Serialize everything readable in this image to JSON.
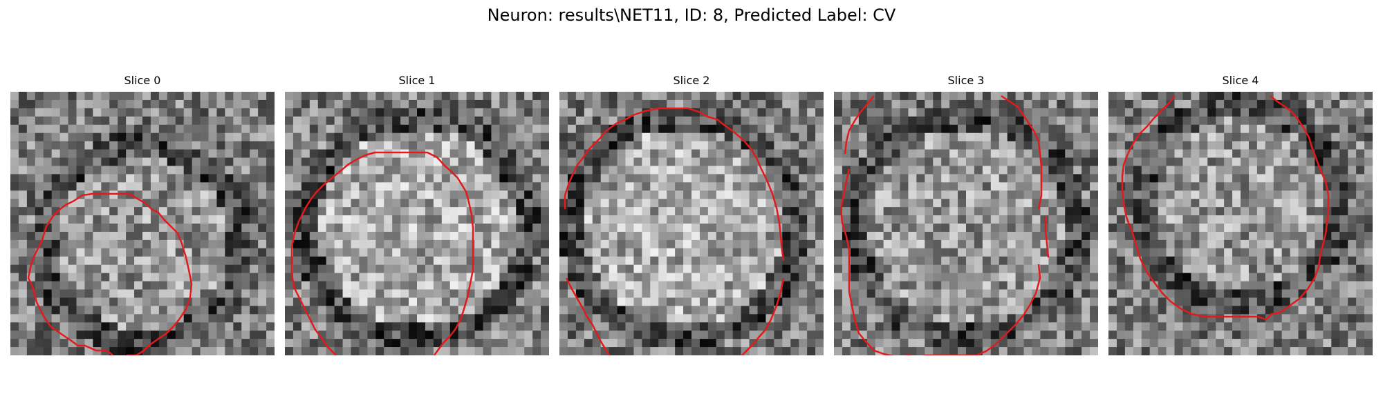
{
  "figure": {
    "title": "Neuron: results\\NET11, ID: 8, Predicted Label: CV"
  },
  "panels": [
    {
      "title": "Slice 0"
    },
    {
      "title": "Slice 1"
    },
    {
      "title": "Slice 2"
    },
    {
      "title": "Slice 3"
    },
    {
      "title": "Slice 4"
    }
  ],
  "colors": {
    "contour": "#e31a1c",
    "background": "#ffffff"
  }
}
